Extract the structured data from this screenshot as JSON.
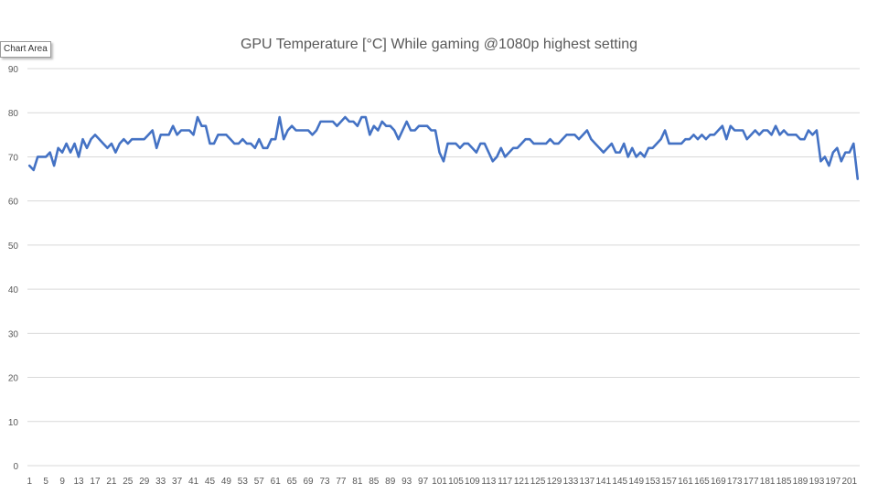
{
  "tooltip": "Chart Area",
  "chart_data": {
    "type": "line",
    "title": "GPU Temperature [°C] While gaming @1080p highest setting",
    "xlabel": "",
    "ylabel": "",
    "ylim": [
      0,
      90
    ],
    "yticks": [
      0,
      10,
      20,
      30,
      40,
      50,
      60,
      70,
      80,
      90
    ],
    "xticks": [
      1,
      5,
      9,
      13,
      17,
      21,
      25,
      29,
      33,
      37,
      41,
      45,
      49,
      53,
      57,
      61,
      65,
      69,
      73,
      77,
      81,
      85,
      89,
      93,
      97,
      101,
      105,
      109,
      113,
      117,
      121,
      125,
      129,
      133,
      137,
      141,
      145,
      149,
      153,
      157,
      161,
      165,
      169,
      173,
      177,
      181,
      185,
      189,
      193,
      197,
      201
    ],
    "grid": true,
    "legend": "none",
    "color": "#4472C4",
    "series": [
      {
        "values": [
          68,
          67,
          70,
          70,
          70,
          71,
          68,
          72,
          71,
          73,
          71,
          73,
          70,
          74,
          72,
          74,
          75,
          74,
          73,
          72,
          73,
          71,
          73,
          74,
          73,
          74,
          74,
          74,
          74,
          75,
          76,
          72,
          75,
          75,
          75,
          77,
          75,
          76,
          76,
          76,
          75,
          79,
          77,
          77,
          73,
          73,
          75,
          75,
          75,
          74,
          73,
          73,
          74,
          73,
          73,
          72,
          74,
          72,
          72,
          74,
          74,
          79,
          74,
          76,
          77,
          76,
          76,
          76,
          76,
          75,
          76,
          78,
          78,
          78,
          78,
          77,
          78,
          79,
          78,
          78,
          77,
          79,
          79,
          75,
          77,
          76,
          78,
          77,
          77,
          76,
          74,
          76,
          78,
          76,
          76,
          77,
          77,
          77,
          76,
          76,
          71,
          69,
          73,
          73,
          73,
          72,
          73,
          73,
          72,
          71,
          73,
          73,
          71,
          69,
          70,
          72,
          70,
          71,
          72,
          72,
          73,
          74,
          74,
          73,
          73,
          73,
          73,
          74,
          73,
          73,
          74,
          75,
          75,
          75,
          74,
          75,
          76,
          74,
          73,
          72,
          71,
          72,
          73,
          71,
          71,
          73,
          70,
          72,
          70,
          71,
          70,
          72,
          72,
          73,
          74,
          76,
          73,
          73,
          73,
          73,
          74,
          74,
          75,
          74,
          75,
          74,
          75,
          75,
          76,
          77,
          74,
          77,
          76,
          76,
          76,
          74,
          75,
          76,
          75,
          76,
          76,
          75,
          77,
          75,
          76,
          75,
          75,
          75,
          74,
          74,
          76,
          75,
          76,
          69,
          70,
          68,
          71,
          72,
          69,
          71,
          71,
          73,
          65
        ]
      }
    ]
  }
}
